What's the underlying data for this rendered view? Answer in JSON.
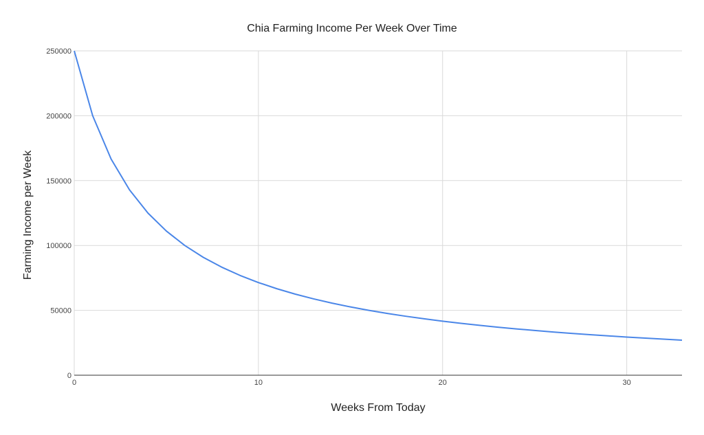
{
  "chart_data": {
    "type": "line",
    "title": "Chia Farming Income Per Week Over Time",
    "xlabel": "Weeks From Today",
    "ylabel": "Farming Income per Week",
    "xlim": [
      0,
      33
    ],
    "ylim": [
      0,
      250000
    ],
    "xticks": [
      0,
      10,
      20,
      30
    ],
    "yticks": [
      0,
      50000,
      100000,
      150000,
      200000,
      250000
    ],
    "grid": true,
    "legend": "none",
    "series": [
      {
        "name": "Farming Income per Week",
        "color": "#4a86e8",
        "x": [
          0,
          1,
          2,
          3,
          4,
          5,
          6,
          7,
          8,
          9,
          10,
          11,
          12,
          13,
          14,
          15,
          16,
          17,
          18,
          19,
          20,
          21,
          22,
          23,
          24,
          25,
          26,
          27,
          28,
          29,
          30,
          31,
          32,
          33
        ],
        "values": [
          250000,
          200000,
          166667,
          142857,
          125000,
          111111,
          100000,
          90909,
          83333,
          76923,
          71429,
          66667,
          62500,
          58824,
          55556,
          52632,
          50000,
          47619,
          45455,
          43478,
          41667,
          40000,
          38462,
          37037,
          35714,
          34483,
          33333,
          32258,
          31250,
          30303,
          29412,
          28571,
          27778,
          27027
        ]
      }
    ]
  }
}
